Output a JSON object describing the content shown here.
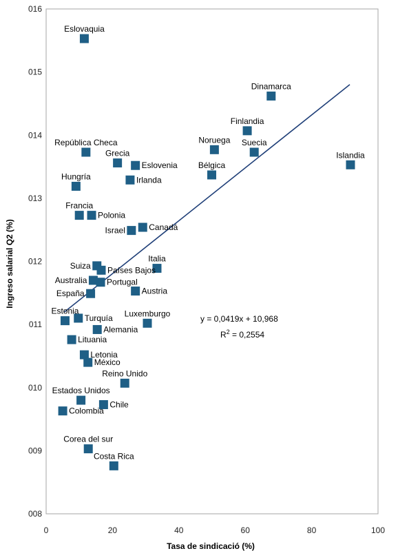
{
  "chart_data": {
    "type": "scatter",
    "xlabel": "Tasa de sindicació (%)",
    "ylabel": "Ingreso salarial Q2 (%)",
    "xlim": [
      0,
      100
    ],
    "ylim": [
      8,
      16
    ],
    "x_ticks": [
      "0",
      "20",
      "40",
      "60",
      "80",
      "100"
    ],
    "y_ticks": [
      "008",
      "009",
      "010",
      "011",
      "012",
      "013",
      "014",
      "015",
      "016"
    ],
    "marker_color": "#1f5f86",
    "trend_color": "#1f3f78",
    "trendline": {
      "slope": 0.0419,
      "intercept": 10.968,
      "x_start": 5.5,
      "x_end": 91.5
    },
    "equation": "y = 0,0419x + 10,968",
    "r2_label": "R",
    "r2_sup": "2",
    "r2_value": " = 0,2554",
    "points": [
      {
        "label": "Eslovaquia",
        "x": 11.5,
        "y": 15.53,
        "pos": "above"
      },
      {
        "label": "Dinamarca",
        "x": 67.8,
        "y": 14.62,
        "pos": "above"
      },
      {
        "label": "Finlandia",
        "x": 60.6,
        "y": 14.07,
        "pos": "above"
      },
      {
        "label": "Noruega",
        "x": 50.7,
        "y": 13.77,
        "pos": "above"
      },
      {
        "label": "Suecia",
        "x": 62.7,
        "y": 13.73,
        "pos": "above"
      },
      {
        "label": "Islandia",
        "x": 91.7,
        "y": 13.53,
        "pos": "above"
      },
      {
        "label": "República Checa",
        "x": 12.0,
        "y": 13.73,
        "pos": "above"
      },
      {
        "label": "Grecia",
        "x": 21.5,
        "y": 13.56,
        "pos": "above"
      },
      {
        "label": "Eslovenia",
        "x": 26.9,
        "y": 13.52,
        "pos": "right"
      },
      {
        "label": "Bélgica",
        "x": 49.9,
        "y": 13.37,
        "pos": "above"
      },
      {
        "label": "Irlanda",
        "x": 25.3,
        "y": 13.29,
        "pos": "right"
      },
      {
        "label": "Hungría",
        "x": 9.0,
        "y": 13.19,
        "pos": "above"
      },
      {
        "label": "Francia",
        "x": 10.0,
        "y": 12.73,
        "pos": "above"
      },
      {
        "label": "Polonia",
        "x": 13.7,
        "y": 12.73,
        "pos": "right"
      },
      {
        "label": "Israel",
        "x": 25.7,
        "y": 12.49,
        "pos": "left"
      },
      {
        "label": "Canadá",
        "x": 29.1,
        "y": 12.54,
        "pos": "right"
      },
      {
        "label": "Italia",
        "x": 33.4,
        "y": 11.89,
        "pos": "above"
      },
      {
        "label": "Suiza",
        "x": 15.3,
        "y": 11.93,
        "pos": "left"
      },
      {
        "label": "Países Bajos",
        "x": 16.6,
        "y": 11.86,
        "pos": "right"
      },
      {
        "label": "Australia",
        "x": 14.2,
        "y": 11.7,
        "pos": "left"
      },
      {
        "label": "Portugal",
        "x": 16.4,
        "y": 11.67,
        "pos": "right"
      },
      {
        "label": "Austria",
        "x": 26.9,
        "y": 11.53,
        "pos": "right"
      },
      {
        "label": "España",
        "x": 13.4,
        "y": 11.49,
        "pos": "left"
      },
      {
        "label": "Estonia",
        "x": 5.7,
        "y": 11.06,
        "pos": "above"
      },
      {
        "label": "Turquía",
        "x": 9.7,
        "y": 11.1,
        "pos": "right"
      },
      {
        "label": "Luxemburgo",
        "x": 30.5,
        "y": 11.02,
        "pos": "above"
      },
      {
        "label": "Alemania",
        "x": 15.4,
        "y": 10.92,
        "pos": "right"
      },
      {
        "label": "Lituania",
        "x": 7.7,
        "y": 10.76,
        "pos": "right"
      },
      {
        "label": "Letonia",
        "x": 11.5,
        "y": 10.52,
        "pos": "right"
      },
      {
        "label": "México",
        "x": 12.6,
        "y": 10.4,
        "pos": "right"
      },
      {
        "label": "Reino Unido",
        "x": 23.7,
        "y": 10.07,
        "pos": "above"
      },
      {
        "label": "Estados Unidos",
        "x": 10.5,
        "y": 9.8,
        "pos": "above"
      },
      {
        "label": "Chile",
        "x": 17.3,
        "y": 9.73,
        "pos": "right"
      },
      {
        "label": "Colombia",
        "x": 5.0,
        "y": 9.63,
        "pos": "right"
      },
      {
        "label": "Corea del sur",
        "x": 12.7,
        "y": 9.03,
        "pos": "above"
      },
      {
        "label": "Costa Rica",
        "x": 20.4,
        "y": 8.76,
        "pos": "above"
      }
    ]
  }
}
